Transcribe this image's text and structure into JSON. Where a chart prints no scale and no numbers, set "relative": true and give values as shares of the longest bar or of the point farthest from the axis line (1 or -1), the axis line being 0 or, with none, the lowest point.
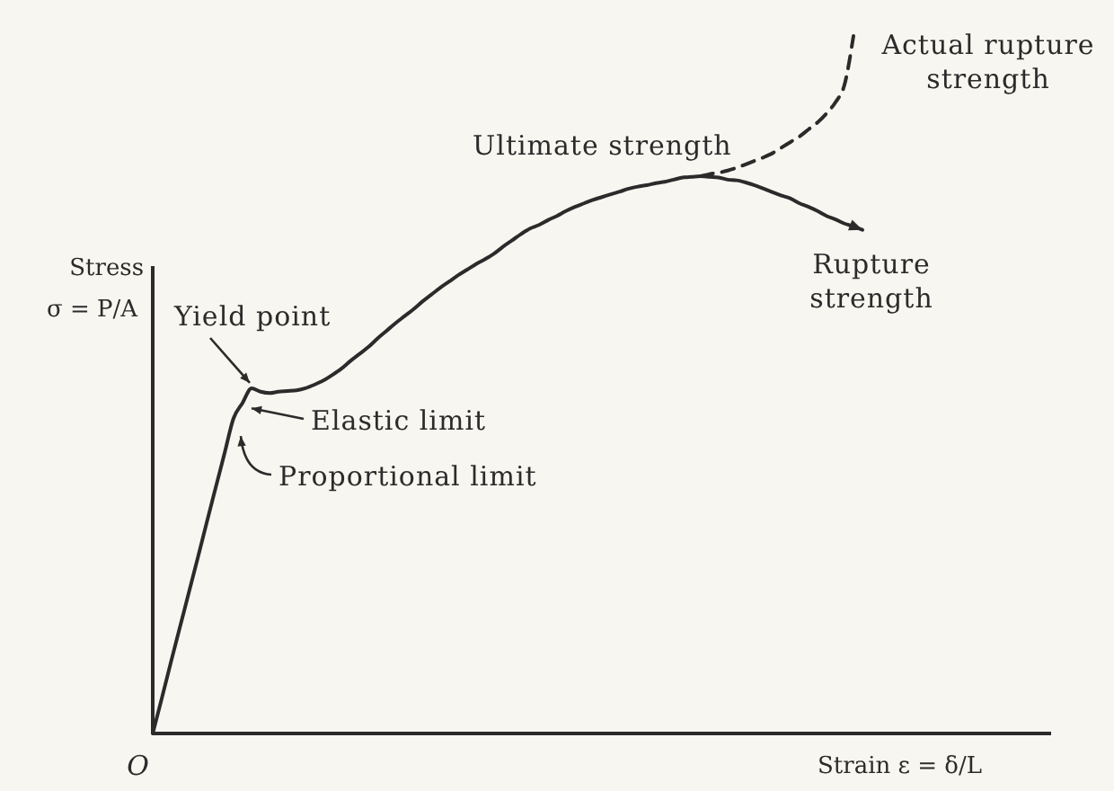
{
  "chart_data": {
    "type": "line",
    "relative": true,
    "ylabel": "Stress σ = P/A",
    "xlabel": "Strain ε = δ/L",
    "categories": [
      null,
      null,
      null,
      null,
      null,
      null,
      null,
      null,
      null,
      null,
      null,
      null,
      null,
      null,
      null,
      null,
      null,
      null,
      null,
      null,
      null,
      null,
      null,
      null,
      null,
      null,
      null,
      null,
      null,
      null,
      null,
      null,
      null,
      null,
      null,
      null,
      null,
      null,
      null,
      null,
      null,
      null,
      null,
      null,
      null,
      null,
      null,
      null,
      null,
      null,
      null,
      null,
      null,
      null,
      null,
      null,
      null,
      null,
      null,
      null,
      null,
      null,
      null,
      null,
      null,
      null,
      null,
      null,
      null,
      null,
      null,
      null,
      null,
      null,
      null,
      null,
      null,
      null,
      null,
      null,
      null,
      null,
      null,
      null,
      null,
      null,
      null,
      null,
      null,
      null,
      null,
      null,
      null,
      null,
      null,
      null,
      null,
      null,
      null,
      null,
      null
    ],
    "series": [
      {
        "color": "#2b2b2b",
        "line_style": "solid",
        "values": [
          0,
          0.05,
          0.101,
          0.151,
          0.201,
          0.251,
          0.302,
          0.352,
          0.402,
          0.452,
          0.474,
          0.495,
          0.49,
          0.488,
          0.49,
          0.491,
          0.492,
          0.495,
          0.5,
          0.506,
          0.514,
          0.523,
          0.534,
          0.544,
          0.554,
          0.566,
          0.577,
          0.588,
          0.598,
          0.608,
          0.619,
          0.629,
          0.639,
          0.648,
          0.657,
          0.665,
          0.673,
          0.68,
          0.688,
          0.698,
          0.707,
          0.716,
          0.724,
          0.729,
          0.736,
          0.742,
          0.749,
          0.755,
          0.76,
          0.765,
          0.769,
          0.773,
          0.777,
          0.781,
          0.784,
          0.786,
          0.789,
          0.791,
          0.794,
          0.797,
          0.798,
          0.799,
          0.798,
          0.797,
          0.794,
          0.793,
          0.79,
          0.786,
          0.781,
          0.776,
          0.771,
          0.767,
          0.76,
          0.755,
          0.749,
          0.742,
          0.737,
          0.731,
          0.727,
          0.722,
          null,
          null,
          null,
          null,
          null,
          null,
          null,
          null,
          null,
          null,
          null,
          null,
          null,
          null,
          null,
          null,
          null,
          null,
          null,
          null,
          null
        ]
      },
      {
        "color": "#2b2b2b",
        "line_style": "dashed",
        "values": [
          null,
          null,
          null,
          null,
          null,
          null,
          null,
          null,
          null,
          null,
          null,
          null,
          null,
          null,
          null,
          null,
          null,
          null,
          null,
          null,
          null,
          null,
          null,
          null,
          null,
          null,
          null,
          null,
          null,
          null,
          null,
          null,
          null,
          null,
          null,
          null,
          null,
          null,
          null,
          null,
          null,
          null,
          null,
          null,
          null,
          null,
          null,
          null,
          null,
          null,
          null,
          null,
          null,
          null,
          null,
          null,
          null,
          null,
          null,
          null,
          null,
          0.799,
          0.802,
          0.804,
          0.807,
          0.811,
          0.816,
          0.821,
          0.826,
          0.832,
          0.84,
          0.848,
          0.856,
          0.866,
          0.876,
          0.889,
          0.905,
          0.93,
          1.0,
          null,
          null,
          null,
          null,
          null,
          null,
          null,
          null,
          null,
          null,
          null,
          null,
          null,
          null,
          null,
          null,
          null,
          null,
          null,
          null,
          null,
          null
        ]
      }
    ],
    "annotations": [
      "Yield point",
      "Elastic limit",
      "Proportional limit",
      "Ultimate strength",
      "Rupture strength",
      "Actual rupture strength",
      "O"
    ]
  }
}
